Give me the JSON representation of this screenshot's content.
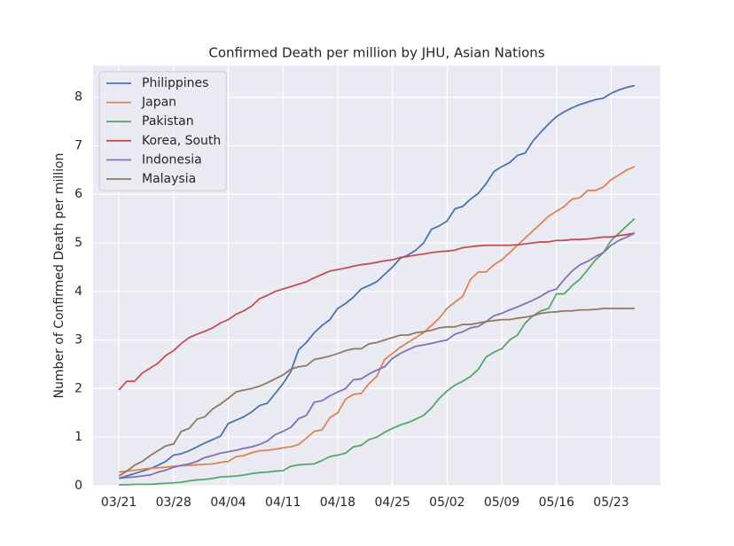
{
  "chart_data": {
    "type": "line",
    "title": "Confirmed Death per million by JHU, Asian Nations",
    "y_label": "Number of Confirmed Death per million",
    "categories": [
      "03/21",
      null,
      null,
      null,
      null,
      null,
      null,
      "03/28",
      null,
      null,
      null,
      null,
      null,
      null,
      "04/04",
      null,
      null,
      null,
      null,
      null,
      null,
      "04/11",
      null,
      null,
      null,
      null,
      null,
      null,
      "04/18",
      null,
      null,
      null,
      null,
      null,
      null,
      "04/25",
      null,
      null,
      null,
      null,
      null,
      null,
      "05/02",
      null,
      null,
      null,
      null,
      null,
      null,
      "05/09",
      null,
      null,
      null,
      null,
      null,
      null,
      "05/16",
      null,
      null,
      null,
      null,
      null,
      null,
      "05/23",
      null,
      null,
      null
    ],
    "ylim": [
      0,
      8.65
    ],
    "yticks": [
      0,
      1,
      2,
      3,
      4,
      5,
      6,
      7,
      8
    ],
    "grid": true,
    "legend": "upper left",
    "series": [
      {
        "name": "Philippines",
        "color": "#4c72b0",
        "values": [
          0.15,
          0.2,
          0.25,
          0.3,
          0.35,
          0.42,
          0.5,
          0.63,
          0.66,
          0.72,
          0.8,
          0.88,
          0.95,
          1.02,
          1.28,
          1.35,
          1.42,
          1.52,
          1.65,
          1.7,
          1.9,
          2.1,
          2.35,
          2.8,
          2.95,
          3.15,
          3.3,
          3.42,
          3.65,
          3.75,
          3.88,
          4.05,
          4.12,
          4.2,
          4.35,
          4.5,
          4.68,
          4.75,
          4.85,
          5.0,
          5.28,
          5.35,
          5.45,
          5.7,
          5.75,
          5.9,
          6.02,
          6.22,
          6.47,
          6.57,
          6.65,
          6.8,
          6.85,
          7.1,
          7.28,
          7.45,
          7.6,
          7.7,
          7.78,
          7.85,
          7.9,
          7.95,
          7.98,
          8.08,
          8.15,
          8.2,
          8.24
        ]
      },
      {
        "name": "Japan",
        "color": "#dd8452",
        "values": [
          0.28,
          0.3,
          0.32,
          0.34,
          0.36,
          0.37,
          0.38,
          0.4,
          0.41,
          0.42,
          0.43,
          0.44,
          0.45,
          0.48,
          0.5,
          0.6,
          0.62,
          0.68,
          0.72,
          0.73,
          0.75,
          0.78,
          0.8,
          0.85,
          0.98,
          1.12,
          1.15,
          1.4,
          1.5,
          1.78,
          1.88,
          1.9,
          2.1,
          2.25,
          2.6,
          2.72,
          2.85,
          2.95,
          3.05,
          3.15,
          3.3,
          3.45,
          3.65,
          3.78,
          3.9,
          4.25,
          4.4,
          4.4,
          4.55,
          4.65,
          4.8,
          4.95,
          5.1,
          5.25,
          5.4,
          5.55,
          5.65,
          5.75,
          5.9,
          5.93,
          6.08,
          6.08,
          6.15,
          6.3,
          6.4,
          6.5,
          6.57
        ]
      },
      {
        "name": "Pakistan",
        "color": "#55a868",
        "values": [
          0.02,
          0.02,
          0.03,
          0.03,
          0.03,
          0.04,
          0.05,
          0.06,
          0.07,
          0.1,
          0.12,
          0.13,
          0.15,
          0.18,
          0.19,
          0.2,
          0.22,
          0.25,
          0.27,
          0.28,
          0.3,
          0.31,
          0.4,
          0.43,
          0.44,
          0.45,
          0.52,
          0.6,
          0.63,
          0.67,
          0.8,
          0.83,
          0.95,
          1.0,
          1.1,
          1.18,
          1.25,
          1.3,
          1.37,
          1.45,
          1.6,
          1.8,
          1.95,
          2.07,
          2.15,
          2.25,
          2.4,
          2.65,
          2.75,
          2.82,
          3.0,
          3.1,
          3.35,
          3.5,
          3.6,
          3.65,
          3.95,
          3.95,
          4.12,
          4.25,
          4.45,
          4.65,
          4.8,
          5.05,
          5.2,
          5.35,
          5.5
        ]
      },
      {
        "name": "Korea, South",
        "color": "#c44e52",
        "values": [
          1.97,
          2.15,
          2.15,
          2.32,
          2.42,
          2.52,
          2.68,
          2.78,
          2.93,
          3.05,
          3.12,
          3.18,
          3.25,
          3.35,
          3.42,
          3.53,
          3.6,
          3.7,
          3.85,
          3.92,
          4.0,
          4.05,
          4.1,
          4.15,
          4.2,
          4.28,
          4.35,
          4.42,
          4.45,
          4.48,
          4.52,
          4.55,
          4.57,
          4.6,
          4.63,
          4.65,
          4.7,
          4.72,
          4.75,
          4.77,
          4.8,
          4.82,
          4.83,
          4.85,
          4.9,
          4.92,
          4.94,
          4.95,
          4.95,
          4.95,
          4.95,
          4.96,
          4.98,
          5.0,
          5.02,
          5.02,
          5.05,
          5.05,
          5.07,
          5.07,
          5.08,
          5.1,
          5.12,
          5.12,
          5.15,
          5.17,
          5.2
        ]
      },
      {
        "name": "Indonesia",
        "color": "#8172b3",
        "values": [
          0.15,
          0.17,
          0.18,
          0.2,
          0.22,
          0.28,
          0.32,
          0.38,
          0.42,
          0.45,
          0.5,
          0.58,
          0.62,
          0.67,
          0.7,
          0.73,
          0.77,
          0.8,
          0.85,
          0.92,
          1.05,
          1.12,
          1.2,
          1.38,
          1.45,
          1.72,
          1.75,
          1.85,
          1.93,
          2.0,
          2.18,
          2.2,
          2.3,
          2.38,
          2.45,
          2.62,
          2.72,
          2.8,
          2.87,
          2.9,
          2.93,
          2.97,
          3.0,
          3.12,
          3.17,
          3.25,
          3.28,
          3.38,
          3.5,
          3.55,
          3.62,
          3.68,
          3.75,
          3.82,
          3.9,
          4.0,
          4.05,
          4.25,
          4.42,
          4.55,
          4.62,
          4.72,
          4.8,
          4.95,
          5.05,
          5.12,
          5.2
        ]
      },
      {
        "name": "Malaysia",
        "color": "#937860",
        "values": [
          0.2,
          0.3,
          0.42,
          0.5,
          0.62,
          0.72,
          0.82,
          0.86,
          1.12,
          1.18,
          1.37,
          1.42,
          1.58,
          1.68,
          1.8,
          1.93,
          1.97,
          2.0,
          2.05,
          2.12,
          2.2,
          2.28,
          2.4,
          2.45,
          2.47,
          2.6,
          2.63,
          2.67,
          2.72,
          2.78,
          2.82,
          2.82,
          2.92,
          2.95,
          3.0,
          3.05,
          3.1,
          3.1,
          3.15,
          3.17,
          3.2,
          3.25,
          3.27,
          3.27,
          3.32,
          3.32,
          3.35,
          3.38,
          3.4,
          3.42,
          3.42,
          3.45,
          3.47,
          3.5,
          3.55,
          3.57,
          3.58,
          3.6,
          3.6,
          3.62,
          3.62,
          3.63,
          3.65,
          3.65,
          3.65,
          3.65,
          3.65
        ]
      }
    ]
  }
}
